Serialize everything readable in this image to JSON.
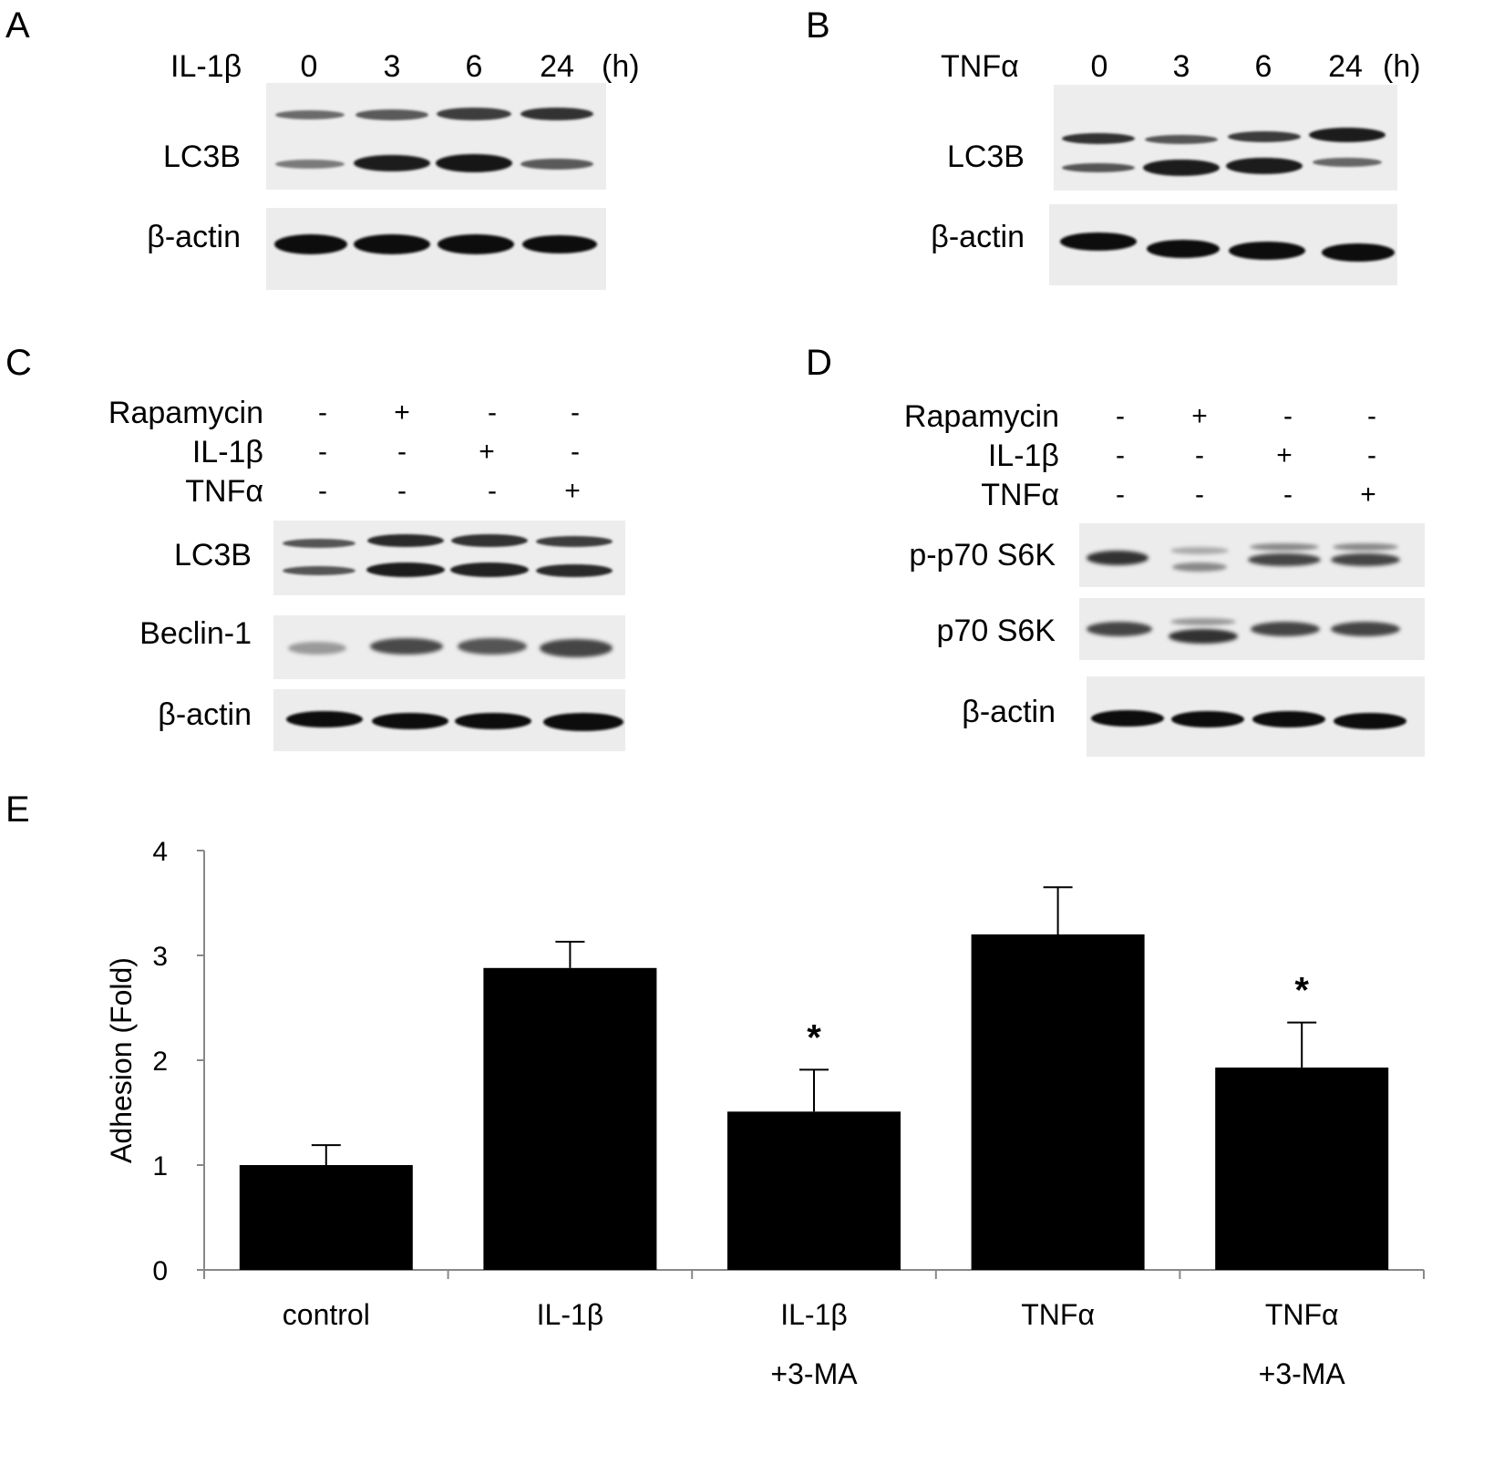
{
  "panels": {
    "A": {
      "letter": "A",
      "treatment": "IL-1β",
      "timepoints": [
        "0",
        "3",
        "6",
        "24"
      ],
      "unit": "(h)",
      "blots": [
        "LC3B",
        "β-actin"
      ]
    },
    "B": {
      "letter": "B",
      "treatment": "TNFα",
      "timepoints": [
        "0",
        "3",
        "6",
        "24"
      ],
      "unit": "(h)",
      "blots": [
        "LC3B",
        "β-actin"
      ]
    },
    "C": {
      "letter": "C",
      "conditions": [
        {
          "label": "Rapamycin",
          "signs": [
            "-",
            "+",
            "-",
            "-"
          ]
        },
        {
          "label": "IL-1β",
          "signs": [
            "-",
            "-",
            "+",
            "-"
          ]
        },
        {
          "label": "TNFα",
          "signs": [
            "-",
            "-",
            "-",
            "+"
          ]
        }
      ],
      "blots": [
        "LC3B",
        "Beclin-1",
        "β-actin"
      ]
    },
    "D": {
      "letter": "D",
      "conditions": [
        {
          "label": "Rapamycin",
          "signs": [
            "-",
            "+",
            "-",
            "-"
          ]
        },
        {
          "label": "IL-1β",
          "signs": [
            "-",
            "-",
            "+",
            "-"
          ]
        },
        {
          "label": "TNFα",
          "signs": [
            "-",
            "-",
            "-",
            "+"
          ]
        }
      ],
      "blots": [
        "p-p70 S6K",
        "p70 S6K",
        "β-actin"
      ]
    },
    "E": {
      "letter": "E"
    }
  },
  "chart_data": {
    "type": "bar",
    "ylabel": "Adhesion (Fold)",
    "xlabel": "",
    "ylim": [
      0,
      4
    ],
    "yticks": [
      "0",
      "1",
      "2",
      "3",
      "4"
    ],
    "categories": [
      {
        "line1": "control",
        "line2": ""
      },
      {
        "line1": "IL-1β",
        "line2": ""
      },
      {
        "line1": "IL-1β",
        "line2": "+3-MA"
      },
      {
        "line1": "TNFα",
        "line2": ""
      },
      {
        "line1": "TNFα",
        "line2": "+3-MA"
      }
    ],
    "values": [
      1.0,
      2.88,
      1.51,
      3.2,
      1.93
    ],
    "errors": [
      0.19,
      0.25,
      0.4,
      0.45,
      0.43
    ],
    "significance": [
      "",
      "",
      "*",
      "",
      "*"
    ],
    "bar_color": "#000000",
    "grid": false
  }
}
